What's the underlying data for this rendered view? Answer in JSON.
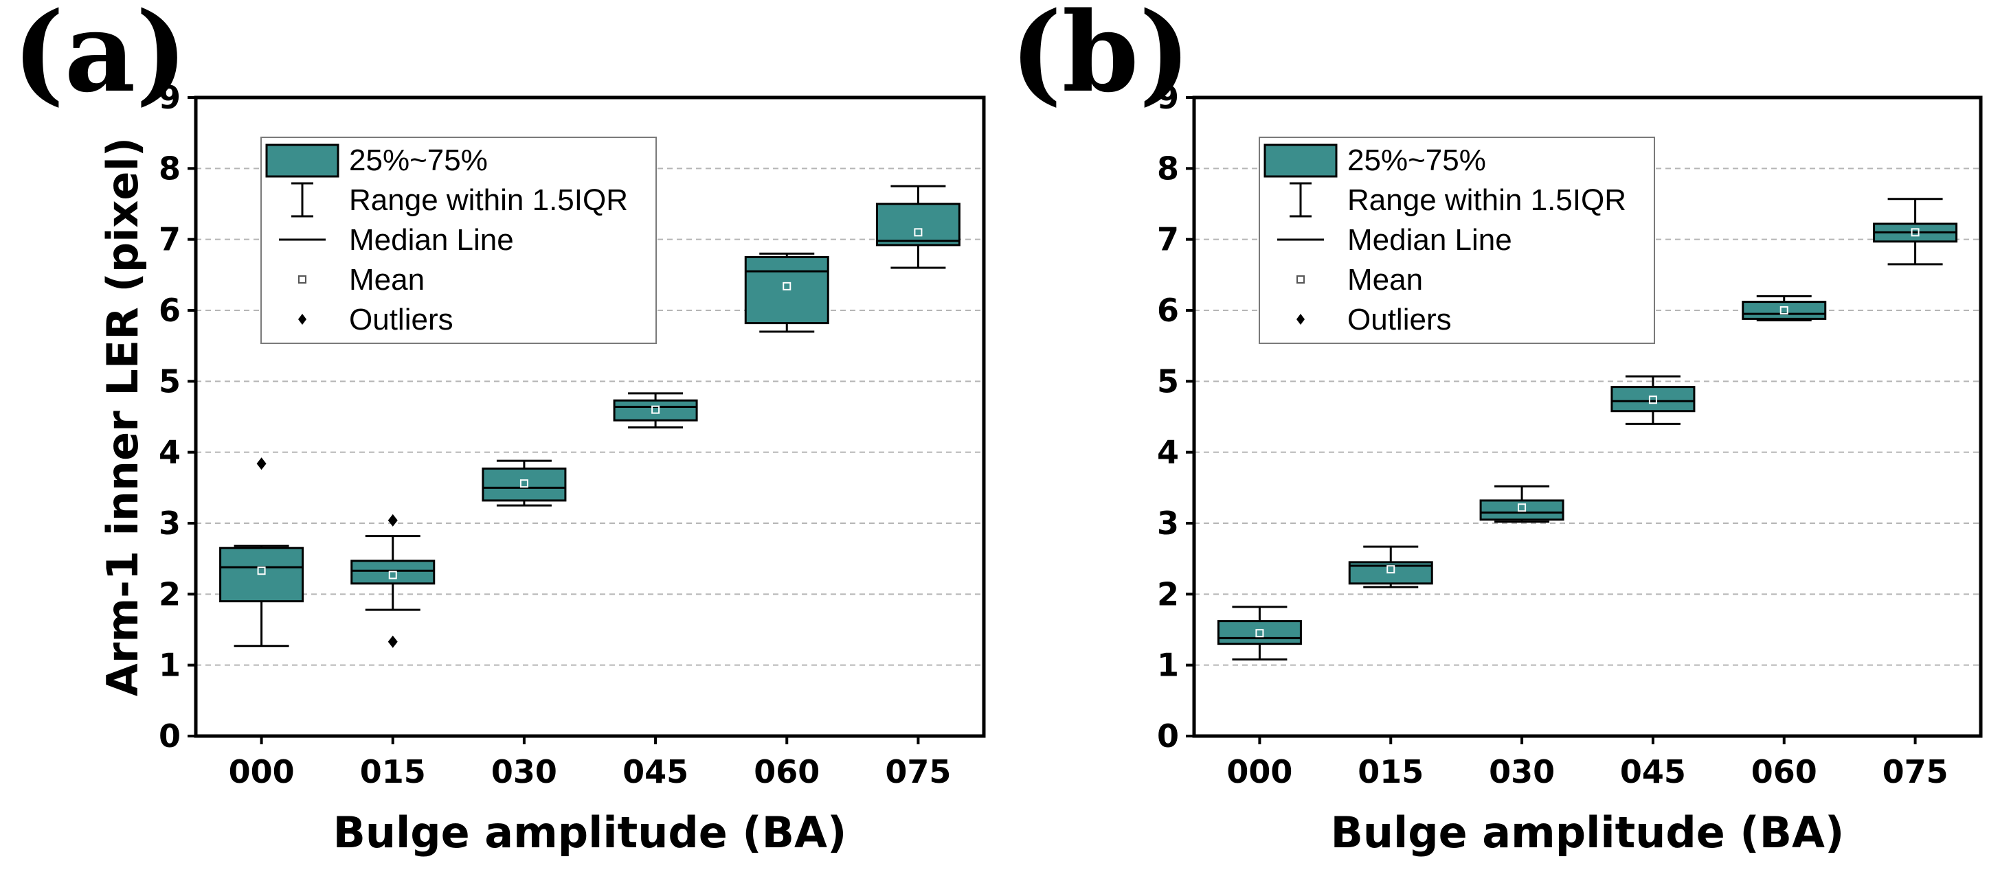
{
  "chart_data": [
    {
      "type": "box",
      "panel_label": "(a)",
      "xlabel": "Bulge amplitude (BA)",
      "ylabel": "Arm-1 inner LER (pixel)",
      "ylim": [
        0,
        9
      ],
      "yticks": [
        "0",
        "1",
        "2",
        "3",
        "4",
        "5",
        "6",
        "7",
        "8",
        "9"
      ],
      "grid": "horizontal dashed",
      "legend": [
        "25%~75%",
        "Range within 1.5IQR",
        "Median Line",
        "Mean",
        "Outliers"
      ],
      "categories": [
        "000",
        "015",
        "030",
        "045",
        "060",
        "075"
      ],
      "boxes": [
        {
          "whisker_low": 1.27,
          "q1": 1.9,
          "median": 2.38,
          "q3": 2.65,
          "whisker_high": 2.68,
          "mean": 2.33,
          "outliers": [
            3.84
          ]
        },
        {
          "whisker_low": 1.78,
          "q1": 2.15,
          "median": 2.33,
          "q3": 2.47,
          "whisker_high": 2.82,
          "mean": 2.27,
          "outliers": [
            3.04,
            1.33
          ]
        },
        {
          "whisker_low": 3.25,
          "q1": 3.32,
          "median": 3.5,
          "q3": 3.77,
          "whisker_high": 3.88,
          "mean": 3.56,
          "outliers": []
        },
        {
          "whisker_low": 4.35,
          "q1": 4.45,
          "median": 4.64,
          "q3": 4.73,
          "whisker_high": 4.83,
          "mean": 4.6,
          "outliers": []
        },
        {
          "whisker_low": 5.7,
          "q1": 5.82,
          "median": 6.55,
          "q3": 6.75,
          "whisker_high": 6.8,
          "mean": 6.34,
          "outliers": []
        },
        {
          "whisker_low": 6.6,
          "q1": 6.92,
          "median": 6.98,
          "q3": 7.5,
          "whisker_high": 7.75,
          "mean": 7.1,
          "outliers": []
        }
      ]
    },
    {
      "type": "box",
      "panel_label": "(b)",
      "xlabel": "Bulge amplitude (BA)",
      "ylabel": "",
      "ylim": [
        0,
        9
      ],
      "yticks": [
        "0",
        "1",
        "2",
        "3",
        "4",
        "5",
        "6",
        "7",
        "8",
        "9"
      ],
      "grid": "horizontal dashed",
      "legend": [
        "25%~75%",
        "Range within 1.5IQR",
        "Median Line",
        "Mean",
        "Outliers"
      ],
      "categories": [
        "000",
        "015",
        "030",
        "045",
        "060",
        "075"
      ],
      "boxes": [
        {
          "whisker_low": 1.08,
          "q1": 1.3,
          "median": 1.38,
          "q3": 1.62,
          "whisker_high": 1.82,
          "mean": 1.45,
          "outliers": []
        },
        {
          "whisker_low": 2.1,
          "q1": 2.15,
          "median": 2.4,
          "q3": 2.45,
          "whisker_high": 2.67,
          "mean": 2.35,
          "outliers": []
        },
        {
          "whisker_low": 3.02,
          "q1": 3.05,
          "median": 3.15,
          "q3": 3.32,
          "whisker_high": 3.52,
          "mean": 3.22,
          "outliers": []
        },
        {
          "whisker_low": 4.4,
          "q1": 4.58,
          "median": 4.72,
          "q3": 4.92,
          "whisker_high": 5.07,
          "mean": 4.74,
          "outliers": []
        },
        {
          "whisker_low": 5.86,
          "q1": 5.88,
          "median": 5.95,
          "q3": 6.12,
          "whisker_high": 6.2,
          "mean": 6.0,
          "outliers": []
        },
        {
          "whisker_low": 6.65,
          "q1": 6.97,
          "median": 7.1,
          "q3": 7.22,
          "whisker_high": 7.57,
          "mean": 7.1,
          "outliers": []
        }
      ]
    }
  ]
}
